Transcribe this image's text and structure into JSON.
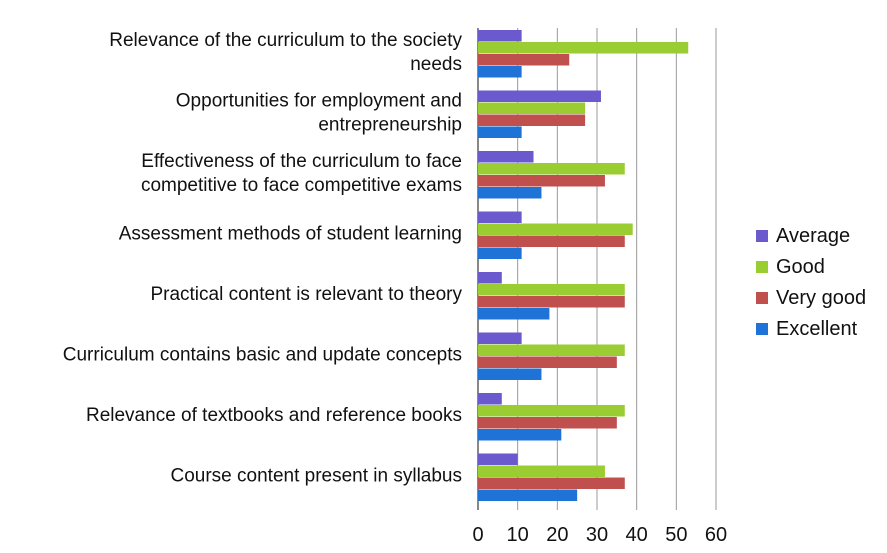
{
  "chart_data": {
    "type": "bar",
    "orientation": "horizontal",
    "categories": [
      "Relevance of the curriculum to the society needs",
      "Opportunities for employment and entrepreneurship",
      "Effectiveness of the curriculum to face competitive to face competitive exams",
      "Assessment methods of student learning",
      "Practical content is relevant to theory",
      "Curriculum contains basic and update concepts",
      "Relevance of textbooks and reference books",
      "Course content present in syllabus"
    ],
    "category_lines": [
      [
        "Relevance of the curriculum to the society",
        "needs"
      ],
      [
        "Opportunities for employment and",
        "entrepreneurship"
      ],
      [
        "Effectiveness of the curriculum to face",
        "competitive to face competitive exams"
      ],
      [
        "Assessment methods of student learning"
      ],
      [
        "Practical content is relevant to theory"
      ],
      [
        "Curriculum contains basic and update concepts"
      ],
      [
        "Relevance of textbooks and reference books"
      ],
      [
        "Course content present in syllabus"
      ]
    ],
    "series": [
      {
        "name": "Average",
        "color": "#6a5acd",
        "values": [
          11,
          31,
          14,
          11,
          6,
          11,
          6,
          10
        ]
      },
      {
        "name": "Good",
        "color": "#9acd32",
        "values": [
          53,
          27,
          37,
          39,
          37,
          37,
          37,
          32
        ]
      },
      {
        "name": "Very good",
        "color": "#c0504d",
        "values": [
          23,
          27,
          32,
          37,
          37,
          35,
          35,
          37
        ]
      },
      {
        "name": "Excellent",
        "color": "#1f73d6",
        "values": [
          11,
          11,
          16,
          11,
          18,
          16,
          21,
          25
        ]
      }
    ],
    "xlim": [
      0,
      60
    ],
    "xticks": [
      0,
      10,
      20,
      30,
      40,
      50,
      60
    ],
    "grid": "vertical",
    "legend": "right",
    "title": "",
    "xlabel": "",
    "ylabel": ""
  }
}
